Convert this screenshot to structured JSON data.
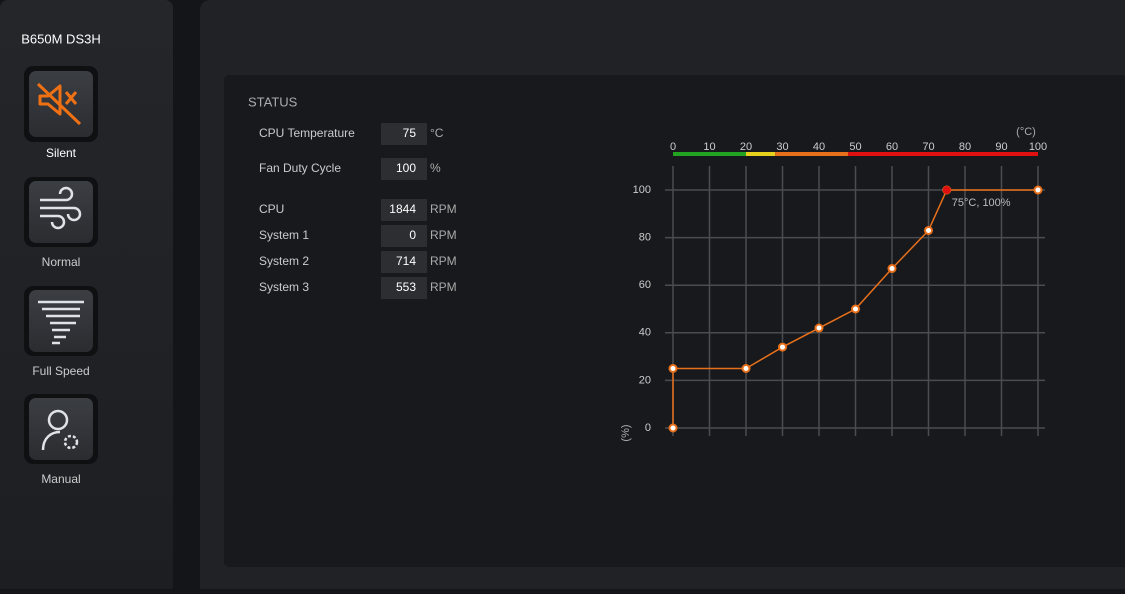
{
  "sidebar": {
    "title": "B650M DS3H",
    "modes": [
      "Silent",
      "Normal",
      "Full Speed",
      "Manual"
    ]
  },
  "status": {
    "title": "STATUS",
    "rows": [
      {
        "label": "CPU Temperature",
        "value": 75,
        "unit": "°C"
      },
      {
        "label": "Fan Duty Cycle",
        "value": 100,
        "unit": "%"
      },
      {
        "label": "CPU",
        "value": 1844,
        "unit": "RPM"
      },
      {
        "label": "System 1",
        "value": 0,
        "unit": "RPM"
      },
      {
        "label": "System 2",
        "value": 714,
        "unit": "RPM"
      },
      {
        "label": "System 3",
        "value": 553,
        "unit": "RPM"
      }
    ]
  },
  "chart_data": {
    "type": "line",
    "x_label": "(°C)",
    "y_label": "(%)",
    "x": [
      0,
      0,
      20,
      30,
      40,
      50,
      60,
      70,
      75,
      100
    ],
    "values": [
      0,
      25,
      25,
      34,
      42,
      50,
      67,
      83,
      100,
      100
    ],
    "color": "#e8701a",
    "xlim": [
      0,
      100
    ],
    "xticks": [
      0,
      10,
      20,
      30,
      40,
      50,
      60,
      70,
      80,
      90,
      100
    ],
    "ylim": [
      0,
      100
    ],
    "yticks": [
      0,
      20,
      40,
      60,
      80,
      100
    ],
    "grid": true,
    "temperature_bands": [
      {
        "from": 0,
        "to": 20,
        "color": "#22a322"
      },
      {
        "from": 20,
        "to": 28,
        "color": "#e6d21c"
      },
      {
        "from": 28,
        "to": 48,
        "color": "#e8701a"
      },
      {
        "from": 48,
        "to": 100,
        "color": "#e01010"
      }
    ],
    "annotation": {
      "text": "75°C, 100%",
      "x": 75,
      "y": 100,
      "color": "#e01010"
    }
  }
}
